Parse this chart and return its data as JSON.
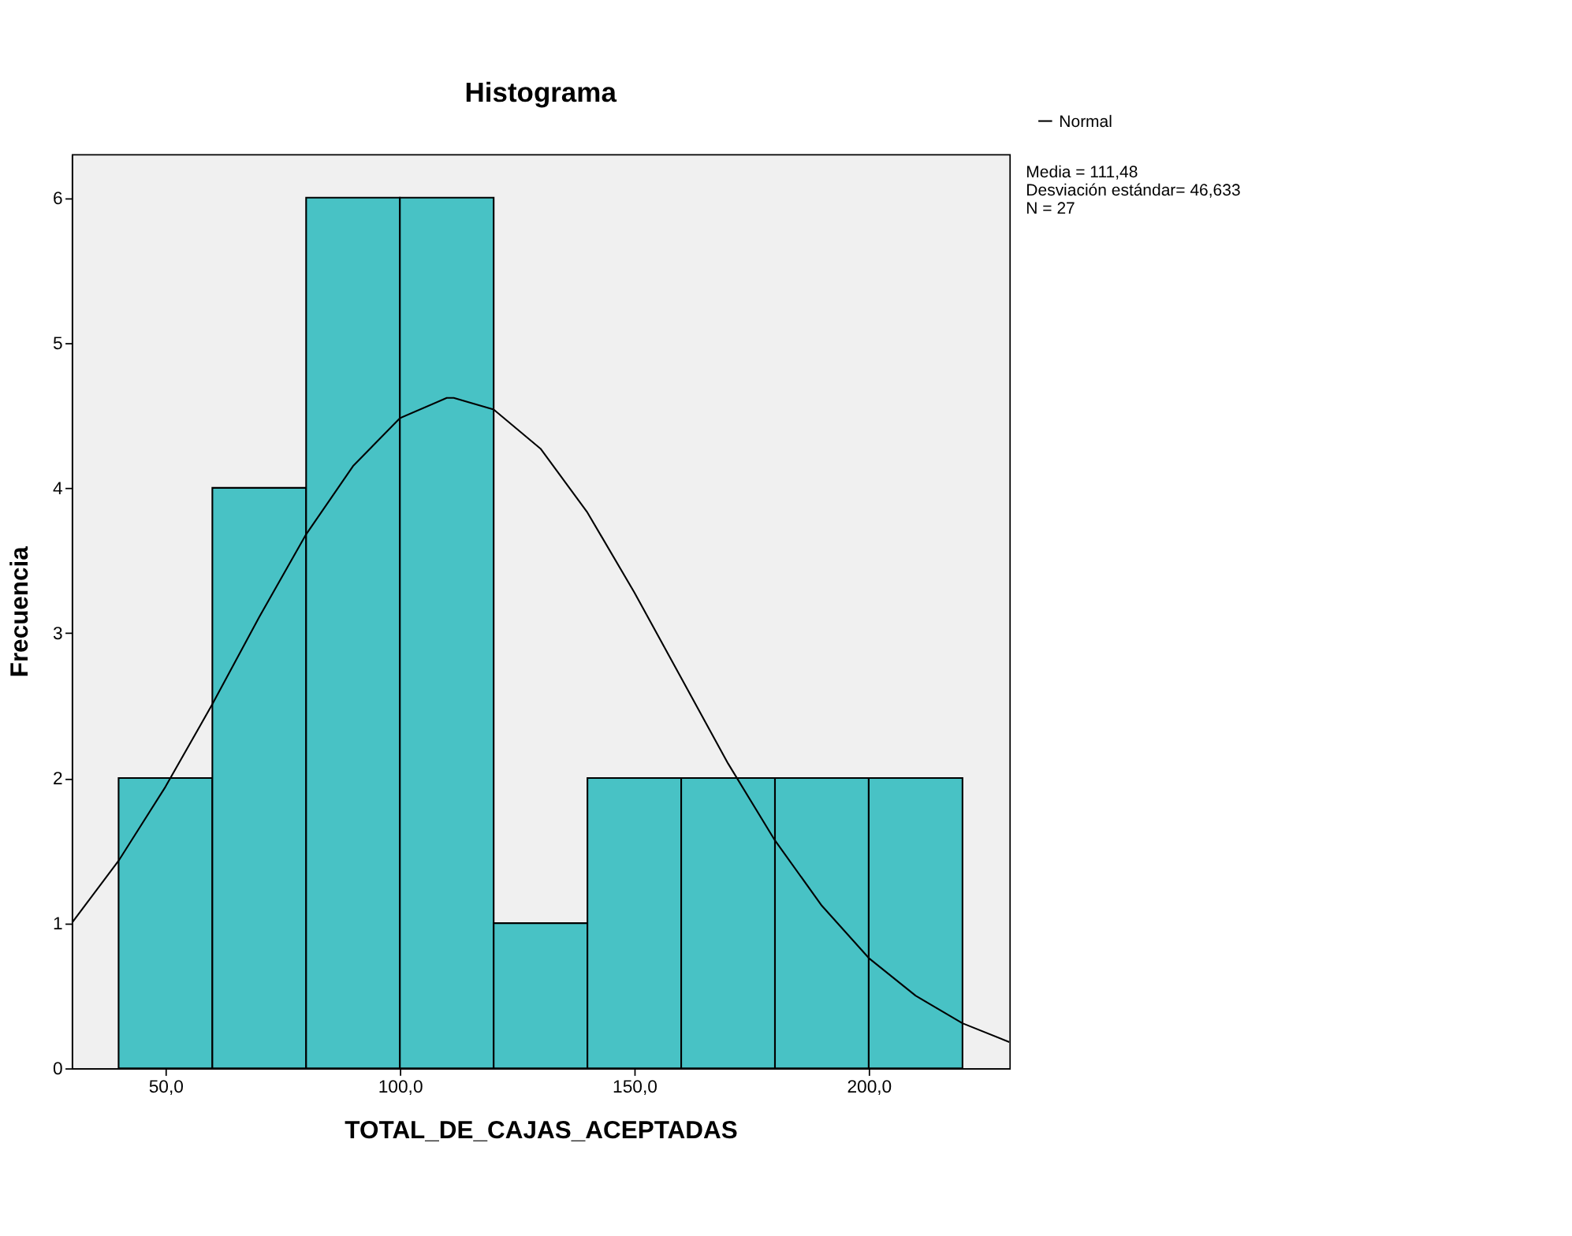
{
  "chart_data": {
    "type": "histogram",
    "title": "Histograma",
    "xlabel": "TOTAL_DE_CAJAS_ACEPTADAS",
    "ylabel": "Frecuencia",
    "bins": [
      40,
      60,
      80,
      100,
      120,
      140,
      160,
      180,
      200,
      220
    ],
    "values": [
      2,
      4,
      6,
      6,
      1,
      2,
      2,
      2,
      2
    ],
    "color": "#48c2c5",
    "series": [
      {
        "name": "Normal",
        "type": "line",
        "color": "#000000",
        "x": [
          30,
          40,
          50,
          60,
          70,
          80,
          90,
          100,
          110,
          111.48,
          120,
          130,
          140,
          150,
          160,
          170,
          180,
          190,
          200,
          210,
          220,
          230
        ],
        "values": [
          1.0,
          1.43,
          1.94,
          2.51,
          3.11,
          3.68,
          4.15,
          4.48,
          4.62,
          4.62,
          4.54,
          4.27,
          3.83,
          3.28,
          2.69,
          2.1,
          1.57,
          1.12,
          0.76,
          0.5,
          0.31,
          0.18
        ]
      }
    ],
    "xlim": [
      30,
      230
    ],
    "xticks": [
      {
        "value": 50,
        "label": "50,0"
      },
      {
        "value": 100,
        "label": "100,0"
      },
      {
        "value": 150,
        "label": "150,0"
      },
      {
        "value": 200,
        "label": "200,0"
      }
    ],
    "ylim": [
      0,
      6.3
    ],
    "yticks": [
      0,
      1,
      2,
      3,
      4,
      5,
      6
    ],
    "grid": false,
    "legend": "top right",
    "annotations": [
      "Media = 111,48",
      "Desviación estándar= 46,633",
      "N = 27"
    ]
  }
}
